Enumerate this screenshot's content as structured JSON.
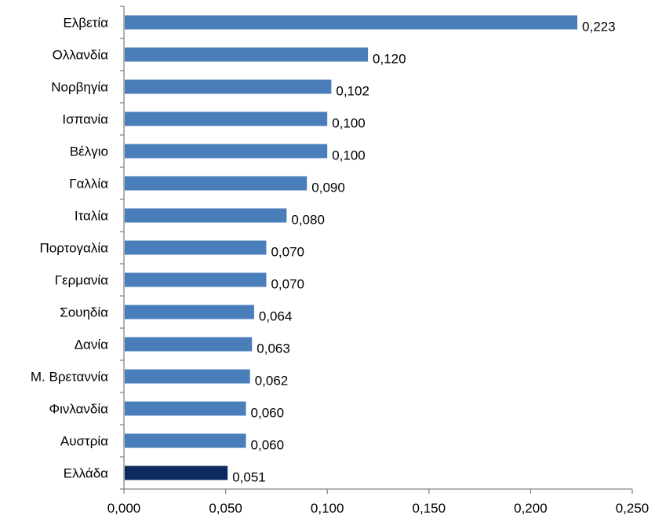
{
  "chart_data": {
    "type": "bar",
    "orientation": "horizontal",
    "title": "",
    "xlabel": "",
    "ylabel": "",
    "categories": [
      "Ελβετία",
      "Ολλανδία",
      "Νορβηγία",
      "Ισπανία",
      "Βέλγιο",
      "Γαλλία",
      "Ιταλία",
      "Πορτογαλία",
      "Γερμανία",
      "Σουηδία",
      "Δανία",
      "Μ. Βρεταννία",
      "Φινλανδία",
      "Αυστρία",
      "Ελλάδα"
    ],
    "values": [
      0.223,
      0.12,
      0.102,
      0.1,
      0.1,
      0.09,
      0.08,
      0.07,
      0.07,
      0.064,
      0.063,
      0.062,
      0.06,
      0.06,
      0.051
    ],
    "value_labels": [
      "0,223",
      "0,120",
      "0,102",
      "0,100",
      "0,100",
      "0,090",
      "0,080",
      "0,070",
      "0,070",
      "0,064",
      "0,063",
      "0,062",
      "0,060",
      "0,060",
      "0,051"
    ],
    "xlim": [
      0,
      0.25
    ],
    "xticks": [
      0,
      0.05,
      0.1,
      0.15,
      0.2,
      0.25
    ],
    "xtick_labels": [
      "0,000",
      "0,050",
      "0,100",
      "0,150",
      "0,200",
      "0,250"
    ],
    "grid": false,
    "legend": "none",
    "colors": {
      "bar": "#4a7ebb",
      "highlight": "#0d2a5e",
      "axis": "#868686"
    },
    "highlight_category": "Ελλάδα"
  }
}
